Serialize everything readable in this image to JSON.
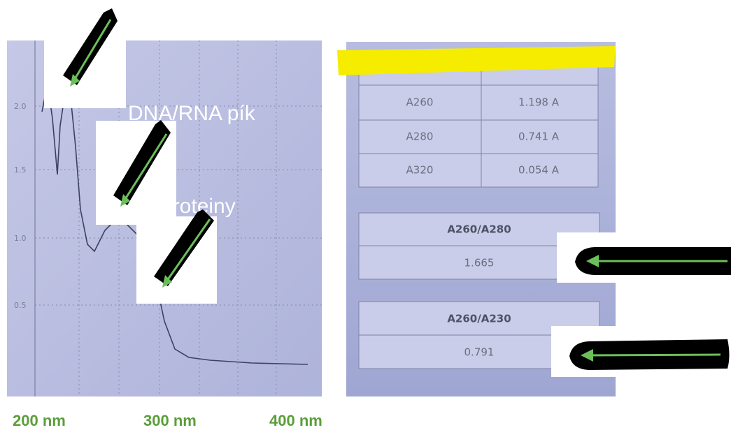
{
  "annotations": {
    "dna_peak": "DNA/RNA pík",
    "proteins": "proteiny"
  },
  "spectrum": {
    "y_labels": [
      "2.0",
      "1.5",
      "1.0",
      "0.5"
    ]
  },
  "table": {
    "rows": [
      [
        "A260",
        "1.198 A"
      ],
      [
        "A280",
        "0.741 A"
      ],
      [
        "A320",
        "0.054 A"
      ]
    ]
  },
  "ratios": [
    {
      "label": "A260/A280",
      "value": "1.665"
    },
    {
      "label": "A260/A230",
      "value": "0.791"
    }
  ],
  "x_labels": [
    "200 nm",
    "300 nm",
    "400 nm"
  ]
}
